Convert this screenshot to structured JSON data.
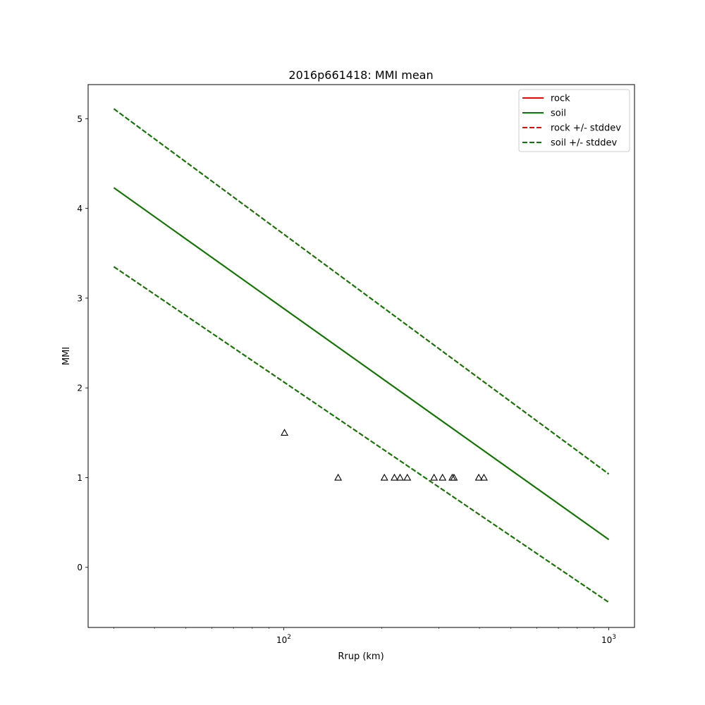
{
  "chart_data": {
    "type": "line",
    "title": "2016p661418: MMI mean",
    "xlabel": "Rrup (km)",
    "ylabel": "MMI",
    "x_scale": "log",
    "xlim": [
      25,
      1200
    ],
    "ylim": [
      -0.67,
      5.38
    ],
    "grid": false,
    "legend_position": "top-right",
    "x_ticks": [
      {
        "value": 100,
        "base": "10",
        "exp": "2"
      },
      {
        "value": 1000,
        "base": "10",
        "exp": "3"
      }
    ],
    "y_ticks": [
      0,
      1,
      2,
      3,
      4,
      5
    ],
    "legend": [
      {
        "label": "rock",
        "color": "#ff0000",
        "dash": "solid"
      },
      {
        "label": "soil",
        "color": "#008000",
        "dash": "solid"
      },
      {
        "label": "rock +/- stddev",
        "color": "#ff0000",
        "dash": "dashed"
      },
      {
        "label": "soil +/- stddev",
        "color": "#008000",
        "dash": "dashed"
      }
    ],
    "series": [
      {
        "name": "rock",
        "color": "#ff0000",
        "dash": "solid",
        "x": [
          30,
          1000
        ],
        "y": [
          4.23,
          0.31
        ]
      },
      {
        "name": "soil",
        "color": "#008000",
        "dash": "solid",
        "x": [
          30,
          1000
        ],
        "y": [
          4.23,
          0.31
        ]
      },
      {
        "name": "rock +/- stddev",
        "color": "#ff0000",
        "dash": "dashed",
        "x": [
          30,
          1000
        ],
        "y": [
          5.11,
          1.04
        ]
      },
      {
        "name": "rock +/- stddev",
        "color": "#ff0000",
        "dash": "dashed",
        "x": [
          30,
          1000
        ],
        "y": [
          3.35,
          -0.39
        ]
      },
      {
        "name": "soil +/- stddev",
        "color": "#008000",
        "dash": "dashed",
        "x": [
          30,
          1000
        ],
        "y": [
          5.11,
          1.04
        ]
      },
      {
        "name": "soil +/- stddev",
        "color": "#008000",
        "dash": "dashed",
        "x": [
          30,
          1000
        ],
        "y": [
          3.35,
          -0.39
        ]
      }
    ],
    "observations": {
      "marker": "triangle-open",
      "color": "#000000",
      "x": [
        100.5,
        147,
        204,
        219,
        228,
        240,
        290,
        308,
        330,
        334,
        398,
        413
      ],
      "y": [
        1.5,
        1,
        1,
        1,
        1,
        1,
        1,
        1,
        1,
        1,
        1,
        1
      ]
    }
  }
}
